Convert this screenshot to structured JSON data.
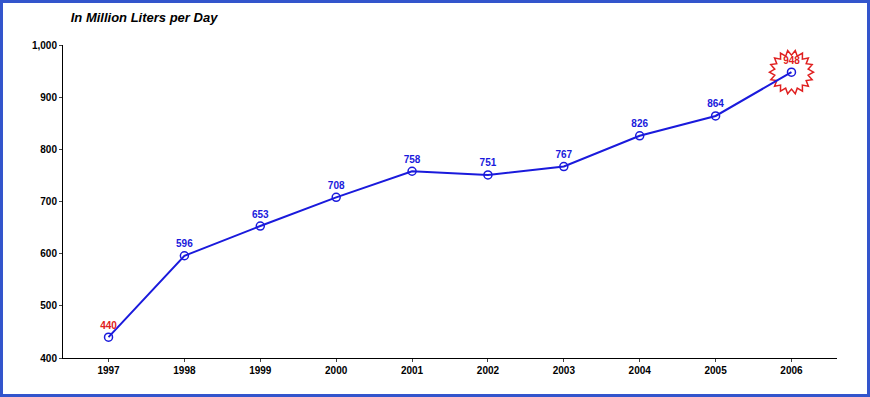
{
  "chart_data": {
    "type": "line",
    "title": "In Million Liters per Day",
    "categories": [
      "1997",
      "1998",
      "1999",
      "2000",
      "2001",
      "2002",
      "2003",
      "2004",
      "2005",
      "2006"
    ],
    "values": [
      440,
      596,
      653,
      708,
      758,
      751,
      767,
      826,
      864,
      948
    ],
    "color": "#1a1adc",
    "marker": "open-circle",
    "data_labels": true,
    "grid": false,
    "ylim": [
      400,
      1000
    ],
    "yticks": [
      400,
      500,
      600,
      700,
      800,
      900,
      {
        "value": 1000,
        "label": "1,000"
      }
    ]
  }
}
